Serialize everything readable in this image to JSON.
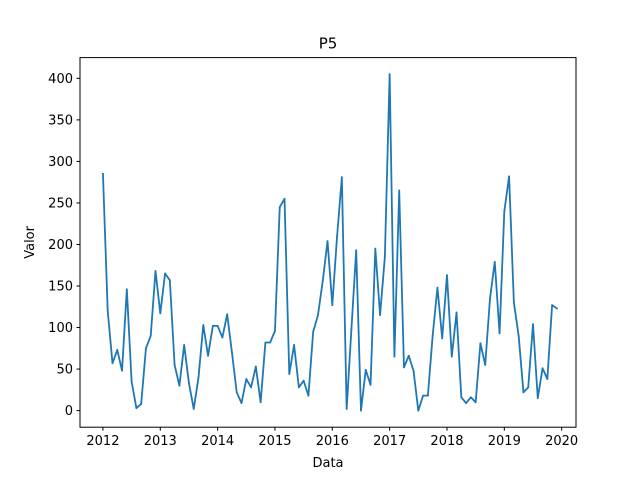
{
  "chart_data": {
    "type": "line",
    "title": "P5",
    "xlabel": "Data",
    "ylabel": "Valor",
    "xlim": [
      2011.6,
      2020.25
    ],
    "ylim": [
      -20,
      425
    ],
    "x_ticks": [
      {
        "value": 2012,
        "label": "2012"
      },
      {
        "value": 2013,
        "label": "2013"
      },
      {
        "value": 2014,
        "label": "2014"
      },
      {
        "value": 2015,
        "label": "2015"
      },
      {
        "value": 2016,
        "label": "2016"
      },
      {
        "value": 2017,
        "label": "2017"
      },
      {
        "value": 2018,
        "label": "2018"
      },
      {
        "value": 2019,
        "label": "2019"
      },
      {
        "value": 2020,
        "label": "2020"
      }
    ],
    "y_ticks": [
      {
        "value": 0,
        "label": "0"
      },
      {
        "value": 50,
        "label": "50"
      },
      {
        "value": 100,
        "label": "100"
      },
      {
        "value": 150,
        "label": "150"
      },
      {
        "value": 200,
        "label": "200"
      },
      {
        "value": 250,
        "label": "250"
      },
      {
        "value": 300,
        "label": "300"
      },
      {
        "value": 350,
        "label": "350"
      },
      {
        "value": 400,
        "label": "400"
      }
    ],
    "grid": false,
    "series": [
      {
        "color": "#1f77b4",
        "x": [
          "2012-01",
          "2012-02",
          "2012-03",
          "2012-04",
          "2012-05",
          "2012-06",
          "2012-07",
          "2012-08",
          "2012-09",
          "2012-10",
          "2012-11",
          "2012-12",
          "2013-01",
          "2013-02",
          "2013-03",
          "2013-04",
          "2013-05",
          "2013-06",
          "2013-07",
          "2013-08",
          "2013-09",
          "2013-10",
          "2013-11",
          "2013-12",
          "2014-01",
          "2014-02",
          "2014-03",
          "2014-04",
          "2014-05",
          "2014-06",
          "2014-07",
          "2014-08",
          "2014-09",
          "2014-10",
          "2014-11",
          "2014-12",
          "2015-01",
          "2015-02",
          "2015-03",
          "2015-04",
          "2015-05",
          "2015-06",
          "2015-07",
          "2015-08",
          "2015-09",
          "2015-10",
          "2015-11",
          "2015-12",
          "2016-01",
          "2016-02",
          "2016-03",
          "2016-04",
          "2016-05",
          "2016-06",
          "2016-07",
          "2016-08",
          "2016-09",
          "2016-10",
          "2016-11",
          "2016-12",
          "2017-01",
          "2017-02",
          "2017-03",
          "2017-04",
          "2017-05",
          "2017-06",
          "2017-07",
          "2017-08",
          "2017-09",
          "2017-10",
          "2017-11",
          "2017-12",
          "2018-01",
          "2018-02",
          "2018-03",
          "2018-04",
          "2018-05",
          "2018-06",
          "2018-07",
          "2018-08",
          "2018-09",
          "2018-10",
          "2018-11",
          "2018-12",
          "2019-01",
          "2019-02",
          "2019-03",
          "2019-04",
          "2019-05",
          "2019-06",
          "2019-07",
          "2019-08",
          "2019-09",
          "2019-10",
          "2019-11",
          "2019-12"
        ],
        "values": [
          285,
          120,
          57,
          73,
          48,
          146,
          35,
          3,
          8,
          75,
          90,
          168,
          117,
          165,
          157,
          55,
          30,
          79,
          33,
          2,
          40,
          103,
          66,
          102,
          102,
          88,
          116,
          70,
          22,
          9,
          38,
          28,
          53,
          10,
          82,
          82,
          96,
          245,
          255,
          44,
          79,
          28,
          36,
          18,
          95,
          115,
          156,
          204,
          127,
          210,
          281,
          2,
          98,
          193,
          0,
          49,
          31,
          195,
          115,
          185,
          405,
          65,
          265,
          52,
          66,
          48,
          0,
          18,
          18,
          90,
          148,
          87,
          163,
          65,
          118,
          16,
          9,
          16,
          10,
          81,
          55,
          135,
          179,
          93,
          240,
          282,
          130,
          90,
          22,
          28,
          104,
          15,
          51,
          38,
          127,
          123
        ]
      }
    ]
  }
}
